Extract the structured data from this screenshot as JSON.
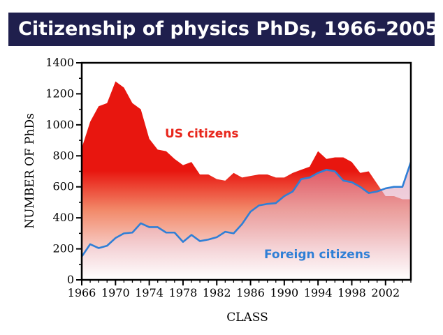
{
  "chart_data": {
    "type": "area",
    "title": "Citizenship of physics PhDs, 1966–2005",
    "xlabel": "CLASS",
    "ylabel": "NUMBER OF PhDs",
    "xlim": [
      1966,
      2005
    ],
    "ylim": [
      0,
      1400
    ],
    "x_ticks": [
      1966,
      1970,
      1974,
      1978,
      1982,
      1986,
      1990,
      1994,
      1998,
      2002
    ],
    "y_ticks": [
      0,
      200,
      400,
      600,
      800,
      1000,
      1200,
      1400
    ],
    "grid": false,
    "x": [
      1966,
      1967,
      1968,
      1969,
      1970,
      1971,
      1972,
      1973,
      1974,
      1975,
      1976,
      1977,
      1978,
      1979,
      1980,
      1981,
      1982,
      1983,
      1984,
      1985,
      1986,
      1987,
      1988,
      1989,
      1990,
      1991,
      1992,
      1993,
      1994,
      1995,
      1996,
      1997,
      1998,
      1999,
      2000,
      2001,
      2002,
      2003,
      2004,
      2005
    ],
    "series": [
      {
        "name": "US citizens",
        "color": "#e8261c",
        "values": [
          850,
          1020,
          1120,
          1140,
          1280,
          1240,
          1140,
          1100,
          910,
          840,
          830,
          780,
          740,
          760,
          680,
          680,
          650,
          640,
          690,
          660,
          670,
          680,
          680,
          660,
          660,
          690,
          710,
          730,
          830,
          780,
          790,
          790,
          760,
          690,
          700,
          620,
          540,
          540,
          520,
          520
        ]
      },
      {
        "name": "Foreign citizens",
        "color": "#2f7fd6",
        "values": [
          150,
          230,
          205,
          220,
          270,
          300,
          305,
          365,
          340,
          340,
          305,
          305,
          245,
          290,
          250,
          260,
          275,
          310,
          300,
          360,
          440,
          480,
          490,
          495,
          540,
          570,
          650,
          660,
          690,
          710,
          700,
          640,
          630,
          600,
          560,
          570,
          590,
          600,
          600,
          760
        ]
      }
    ]
  }
}
